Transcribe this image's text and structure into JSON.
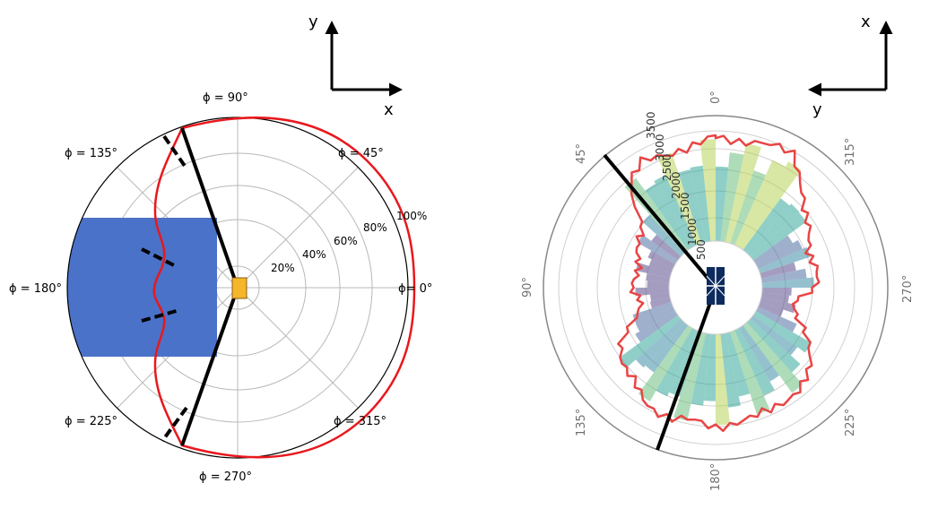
{
  "left_panel": {
    "phi_labels": {
      "deg90": "ϕ = 90°",
      "deg45": "ϕ = 45°",
      "deg135": "ϕ = 135°",
      "deg180": "ϕ = 180°",
      "deg0": "ϕ= 0°",
      "deg225": "ϕ = 225°",
      "deg315": "ϕ = 315°",
      "deg270": "ϕ = 270°"
    },
    "radial_labels": [
      "20%",
      "40%",
      "60%",
      "80%",
      "100%"
    ],
    "axes": {
      "vertical": "y",
      "horizontal": "x"
    }
  },
  "right_panel": {
    "angle_labels": {
      "a0": "0°",
      "a45": "45°",
      "a90": "90°",
      "a135": "135°",
      "a180": "180°",
      "a225": "225°",
      "a270": "270°",
      "a315": "315°"
    },
    "radial_labels": [
      "500",
      "1000",
      "1500",
      "2000",
      "2500",
      "3000",
      "3500"
    ],
    "axes": {
      "vertical": "x",
      "horizontal": "y"
    }
  },
  "colors": {
    "pattern_line": "#e8181d",
    "block": "#4a72c8",
    "source": "#f5b62a",
    "sensor": "#0d2b5e"
  }
}
